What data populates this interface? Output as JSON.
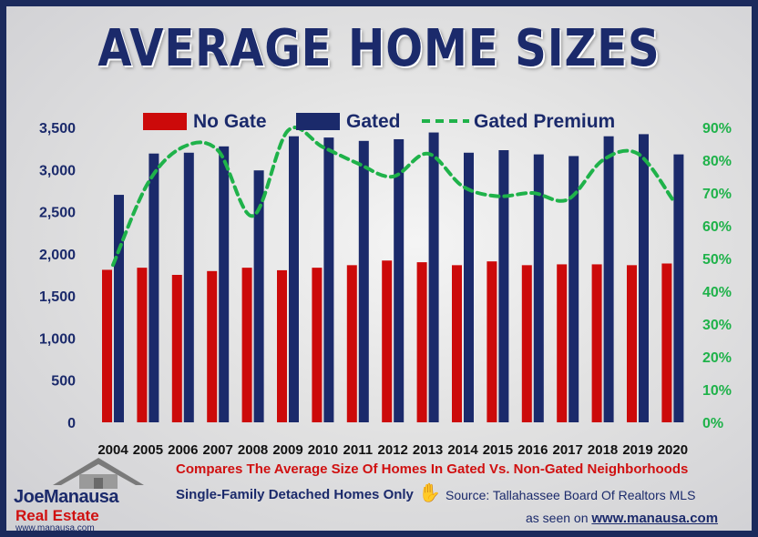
{
  "title": "AVERAGE HOME SIZES",
  "legend": {
    "no_gate": "No Gate",
    "gated": "Gated",
    "premium": "Gated Premium"
  },
  "colors": {
    "no_gate": "#cc0a0a",
    "gated": "#1b2a6b",
    "premium": "#1fb24a"
  },
  "chart_data": {
    "type": "bar",
    "title": "AVERAGE HOME SIZES",
    "categories": [
      "2004",
      "2005",
      "2006",
      "2007",
      "2008",
      "2009",
      "2010",
      "2011",
      "2012",
      "2013",
      "2014",
      "2015",
      "2016",
      "2017",
      "2018",
      "2019",
      "2020"
    ],
    "series": [
      {
        "name": "No Gate",
        "type": "bar",
        "axis": "left",
        "values": [
          1810,
          1835,
          1750,
          1795,
          1835,
          1805,
          1835,
          1865,
          1920,
          1900,
          1865,
          1910,
          1865,
          1875,
          1875,
          1865,
          1885
        ]
      },
      {
        "name": "Gated",
        "type": "bar",
        "axis": "left",
        "values": [
          2700,
          3190,
          3200,
          3275,
          2990,
          3395,
          3380,
          3340,
          3360,
          3440,
          3200,
          3230,
          3180,
          3160,
          3395,
          3420,
          3180
        ]
      },
      {
        "name": "Gated Premium",
        "type": "line",
        "axis": "right",
        "values": [
          48,
          73,
          84,
          83,
          63,
          89,
          84,
          79,
          75,
          82,
          72,
          69,
          70,
          68,
          80,
          82,
          68
        ]
      }
    ],
    "ylim_left": [
      0,
      3500
    ],
    "yticks_left": [
      "0",
      "500",
      "1,000",
      "1,500",
      "2,000",
      "2,500",
      "3,000",
      "3,500"
    ],
    "ylim_right": [
      0,
      90
    ],
    "yticks_right": [
      "0%",
      "10%",
      "20%",
      "30%",
      "40%",
      "50%",
      "60%",
      "70%",
      "80%",
      "90%"
    ],
    "legend_position": "top",
    "grid": false
  },
  "notes": {
    "compare": "Compares The Average Size Of Homes In Gated Vs. Non-Gated Neighborhoods",
    "scope": "Single-Family Detached Homes Only",
    "source": "Source: Tallahassee Board Of Realtors MLS",
    "seen_prefix": "as seen on",
    "seen_url": "www.manausa.com"
  },
  "logo": {
    "line1": "JoeManausa",
    "line2": "Real Estate",
    "line3": "www.manausa.com"
  }
}
